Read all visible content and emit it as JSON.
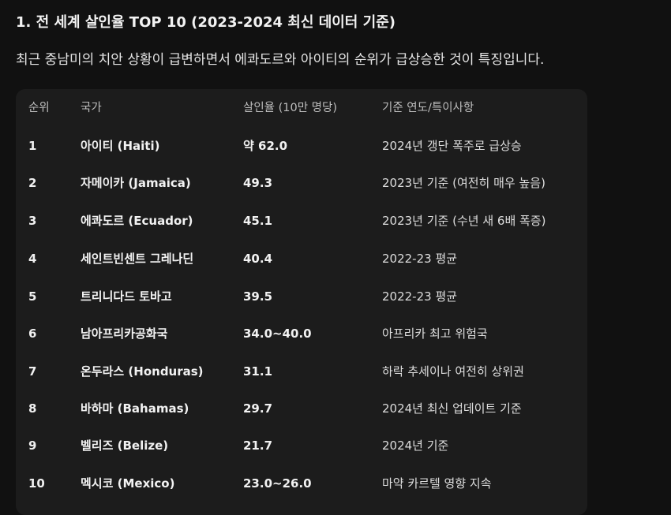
{
  "section": {
    "title": "1. 전 세계 살인율 TOP 10 (2023-2024 최신 데이터 기준)",
    "description": "최근 중남미의 치안 상황이 급변하면서 에콰도르와 아이티의 순위가 급상승한 것이 특징입니다."
  },
  "table": {
    "headers": {
      "rank": "순위",
      "country": "국가",
      "rate": "살인율 (10만 명당)",
      "note": "기준 연도/특이사항"
    },
    "rows": [
      {
        "rank": "1",
        "country": "아이티 (Haiti)",
        "rate": "약 62.0",
        "note": "2024년 갱단 폭주로 급상승"
      },
      {
        "rank": "2",
        "country": "자메이카 (Jamaica)",
        "rate": "49.3",
        "note": "2023년 기준 (여전히 매우 높음)"
      },
      {
        "rank": "3",
        "country": "에콰도르 (Ecuador)",
        "rate": "45.1",
        "note": "2023년 기준 (수년 새 6배 폭증)"
      },
      {
        "rank": "4",
        "country": "세인트빈센트 그레나딘",
        "rate": "40.4",
        "note": "2022-23 평균"
      },
      {
        "rank": "5",
        "country": "트리니다드 토바고",
        "rate": "39.5",
        "note": "2022-23 평균"
      },
      {
        "rank": "6",
        "country": "남아프리카공화국",
        "rate": "34.0~40.0",
        "note": "아프리카 최고 위험국"
      },
      {
        "rank": "7",
        "country": "온두라스 (Honduras)",
        "rate": "31.1",
        "note": "하락 추세이나 여전히 상위권"
      },
      {
        "rank": "8",
        "country": "바하마 (Bahamas)",
        "rate": "29.7",
        "note": "2024년 최신 업데이트 기준"
      },
      {
        "rank": "9",
        "country": "벨리즈 (Belize)",
        "rate": "21.7",
        "note": "2024년 기준"
      },
      {
        "rank": "10",
        "country": "멕시코 (Mexico)",
        "rate": "23.0~26.0",
        "note": "마약 카르텔 영향 지속"
      }
    ]
  }
}
